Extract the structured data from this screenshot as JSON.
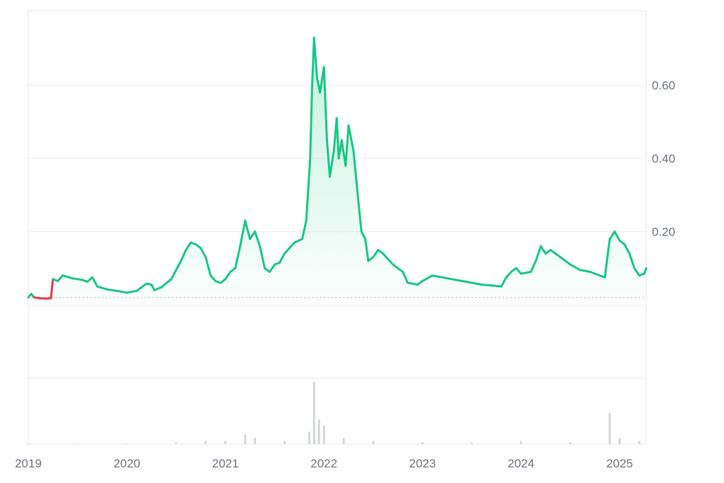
{
  "chart_data": {
    "type": "area",
    "title": "",
    "xlabel": "",
    "ylabel": "",
    "x_ticks": [
      "2019",
      "2020",
      "2021",
      "2022",
      "2023",
      "2024",
      "2025"
    ],
    "y_ticks": [
      "0.20",
      "0.40",
      "0.60"
    ],
    "ylim": [
      0,
      0.79
    ],
    "xlim": [
      2019.0,
      2025.27
    ],
    "baseline": 0.02,
    "grid": "horizontal",
    "colors": {
      "up": "#16c784",
      "down": "#ea3943",
      "volume": "#d1d5db"
    },
    "series": [
      {
        "values": [
          [
            2019.0,
            0.02
          ],
          [
            2019.03,
            0.03
          ],
          [
            2019.06,
            0.02
          ],
          [
            2019.12,
            0.018
          ],
          [
            2019.18,
            0.017
          ],
          [
            2019.23,
            0.018
          ],
          [
            2019.25,
            0.07
          ],
          [
            2019.3,
            0.065
          ],
          [
            2019.35,
            0.08
          ],
          [
            2019.45,
            0.072
          ],
          [
            2019.55,
            0.068
          ],
          [
            2019.6,
            0.063
          ],
          [
            2019.65,
            0.075
          ],
          [
            2019.7,
            0.05
          ],
          [
            2019.8,
            0.042
          ],
          [
            2019.9,
            0.038
          ],
          [
            2020.0,
            0.033
          ],
          [
            2020.1,
            0.038
          ],
          [
            2020.15,
            0.048
          ],
          [
            2020.2,
            0.058
          ],
          [
            2020.25,
            0.055
          ],
          [
            2020.28,
            0.04
          ],
          [
            2020.35,
            0.048
          ],
          [
            2020.45,
            0.07
          ],
          [
            2020.55,
            0.12
          ],
          [
            2020.6,
            0.15
          ],
          [
            2020.65,
            0.17
          ],
          [
            2020.7,
            0.165
          ],
          [
            2020.75,
            0.155
          ],
          [
            2020.8,
            0.13
          ],
          [
            2020.85,
            0.08
          ],
          [
            2020.9,
            0.065
          ],
          [
            2020.95,
            0.06
          ],
          [
            2021.0,
            0.07
          ],
          [
            2021.05,
            0.09
          ],
          [
            2021.1,
            0.1
          ],
          [
            2021.15,
            0.16
          ],
          [
            2021.2,
            0.23
          ],
          [
            2021.25,
            0.18
          ],
          [
            2021.3,
            0.2
          ],
          [
            2021.35,
            0.16
          ],
          [
            2021.4,
            0.1
          ],
          [
            2021.45,
            0.09
          ],
          [
            2021.5,
            0.11
          ],
          [
            2021.55,
            0.115
          ],
          [
            2021.6,
            0.14
          ],
          [
            2021.65,
            0.155
          ],
          [
            2021.7,
            0.17
          ],
          [
            2021.78,
            0.18
          ],
          [
            2021.82,
            0.23
          ],
          [
            2021.86,
            0.4
          ],
          [
            2021.88,
            0.6
          ],
          [
            2021.9,
            0.73
          ],
          [
            2021.93,
            0.62
          ],
          [
            2021.96,
            0.58
          ],
          [
            2022.0,
            0.65
          ],
          [
            2022.03,
            0.45
          ],
          [
            2022.06,
            0.35
          ],
          [
            2022.1,
            0.42
          ],
          [
            2022.13,
            0.51
          ],
          [
            2022.15,
            0.4
          ],
          [
            2022.18,
            0.45
          ],
          [
            2022.22,
            0.38
          ],
          [
            2022.25,
            0.49
          ],
          [
            2022.3,
            0.42
          ],
          [
            2022.35,
            0.28
          ],
          [
            2022.38,
            0.2
          ],
          [
            2022.42,
            0.18
          ],
          [
            2022.45,
            0.12
          ],
          [
            2022.5,
            0.13
          ],
          [
            2022.55,
            0.15
          ],
          [
            2022.6,
            0.14
          ],
          [
            2022.7,
            0.11
          ],
          [
            2022.8,
            0.09
          ],
          [
            2022.85,
            0.06
          ],
          [
            2022.95,
            0.055
          ],
          [
            2023.0,
            0.065
          ],
          [
            2023.1,
            0.08
          ],
          [
            2023.2,
            0.075
          ],
          [
            2023.3,
            0.07
          ],
          [
            2023.4,
            0.065
          ],
          [
            2023.5,
            0.06
          ],
          [
            2023.6,
            0.055
          ],
          [
            2023.7,
            0.053
          ],
          [
            2023.8,
            0.05
          ],
          [
            2023.85,
            0.075
          ],
          [
            2023.9,
            0.09
          ],
          [
            2023.95,
            0.1
          ],
          [
            2024.0,
            0.085
          ],
          [
            2024.1,
            0.09
          ],
          [
            2024.15,
            0.12
          ],
          [
            2024.2,
            0.16
          ],
          [
            2024.25,
            0.14
          ],
          [
            2024.3,
            0.15
          ],
          [
            2024.4,
            0.13
          ],
          [
            2024.5,
            0.11
          ],
          [
            2024.6,
            0.095
          ],
          [
            2024.7,
            0.09
          ],
          [
            2024.8,
            0.08
          ],
          [
            2024.85,
            0.075
          ],
          [
            2024.9,
            0.18
          ],
          [
            2024.95,
            0.2
          ],
          [
            2025.0,
            0.175
          ],
          [
            2025.05,
            0.165
          ],
          [
            2025.1,
            0.14
          ],
          [
            2025.15,
            0.1
          ],
          [
            2025.2,
            0.08
          ],
          [
            2025.25,
            0.085
          ],
          [
            2025.27,
            0.1
          ]
        ]
      }
    ],
    "volume": [
      [
        2019.0,
        0.01
      ],
      [
        2019.5,
        0.01
      ],
      [
        2020.0,
        0.01
      ],
      [
        2020.5,
        0.03
      ],
      [
        2020.8,
        0.05
      ],
      [
        2021.0,
        0.05
      ],
      [
        2021.2,
        0.15
      ],
      [
        2021.3,
        0.1
      ],
      [
        2021.6,
        0.05
      ],
      [
        2021.85,
        0.2
      ],
      [
        2021.9,
        1.0
      ],
      [
        2021.95,
        0.4
      ],
      [
        2022.0,
        0.3
      ],
      [
        2022.2,
        0.1
      ],
      [
        2022.5,
        0.05
      ],
      [
        2023.0,
        0.03
      ],
      [
        2023.5,
        0.02
      ],
      [
        2024.0,
        0.05
      ],
      [
        2024.5,
        0.03
      ],
      [
        2024.9,
        0.5
      ],
      [
        2025.0,
        0.1
      ],
      [
        2025.2,
        0.05
      ]
    ]
  }
}
